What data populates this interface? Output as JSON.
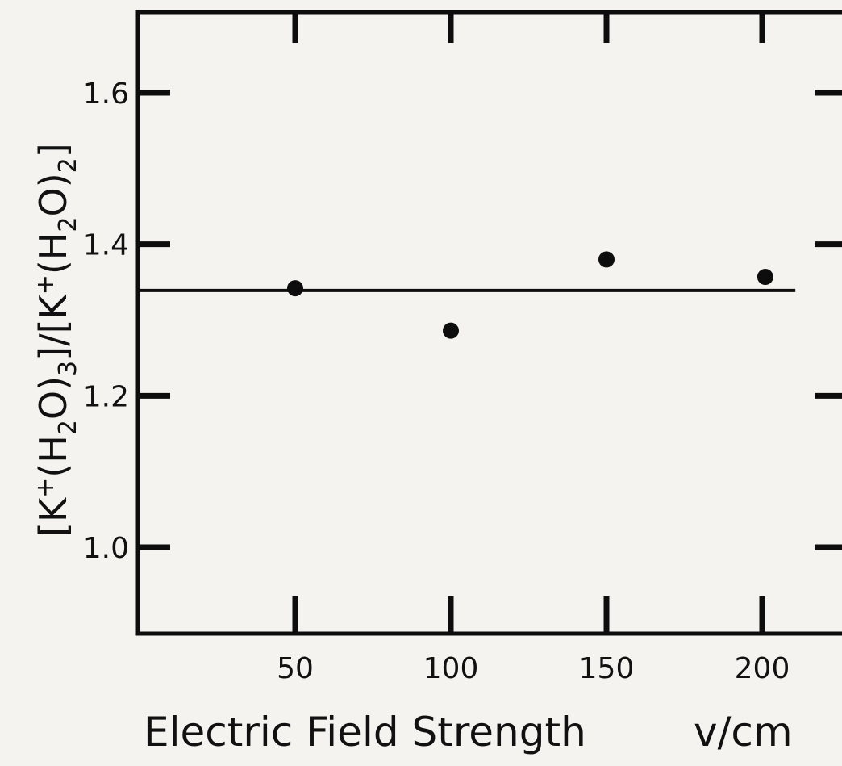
{
  "chart_data": {
    "type": "scatter",
    "xlabel": "Electric Field Strength",
    "xunit": "v/cm",
    "ylabel_parts": [
      "[K",
      "+",
      "(H",
      "2",
      "O)",
      "3",
      "]/[K",
      "+",
      "(H",
      "2",
      "O)",
      "2",
      "]"
    ],
    "xlim": [
      10,
      224
    ],
    "ylim": [
      0.885,
      1.72
    ],
    "xticks": [
      50,
      100,
      150,
      200
    ],
    "xtick_labels": [
      "50",
      "100",
      "150",
      "200"
    ],
    "yticks": [
      1.0,
      1.2,
      1.4,
      1.6
    ],
    "ytick_labels": [
      "1.0",
      "1.2",
      "1.4",
      "1.6"
    ],
    "points": [
      {
        "x": 50,
        "y": 1.342
      },
      {
        "x": 100,
        "y": 1.286
      },
      {
        "x": 150,
        "y": 1.38
      },
      {
        "x": 201,
        "y": 1.357
      }
    ],
    "reference_line": {
      "y": 1.339,
      "x_from": 10,
      "x_to": 206
    },
    "grid": false,
    "legend": "none",
    "colors": {
      "ink": "#0d0d0d",
      "paper": "#f4f3ef"
    }
  }
}
